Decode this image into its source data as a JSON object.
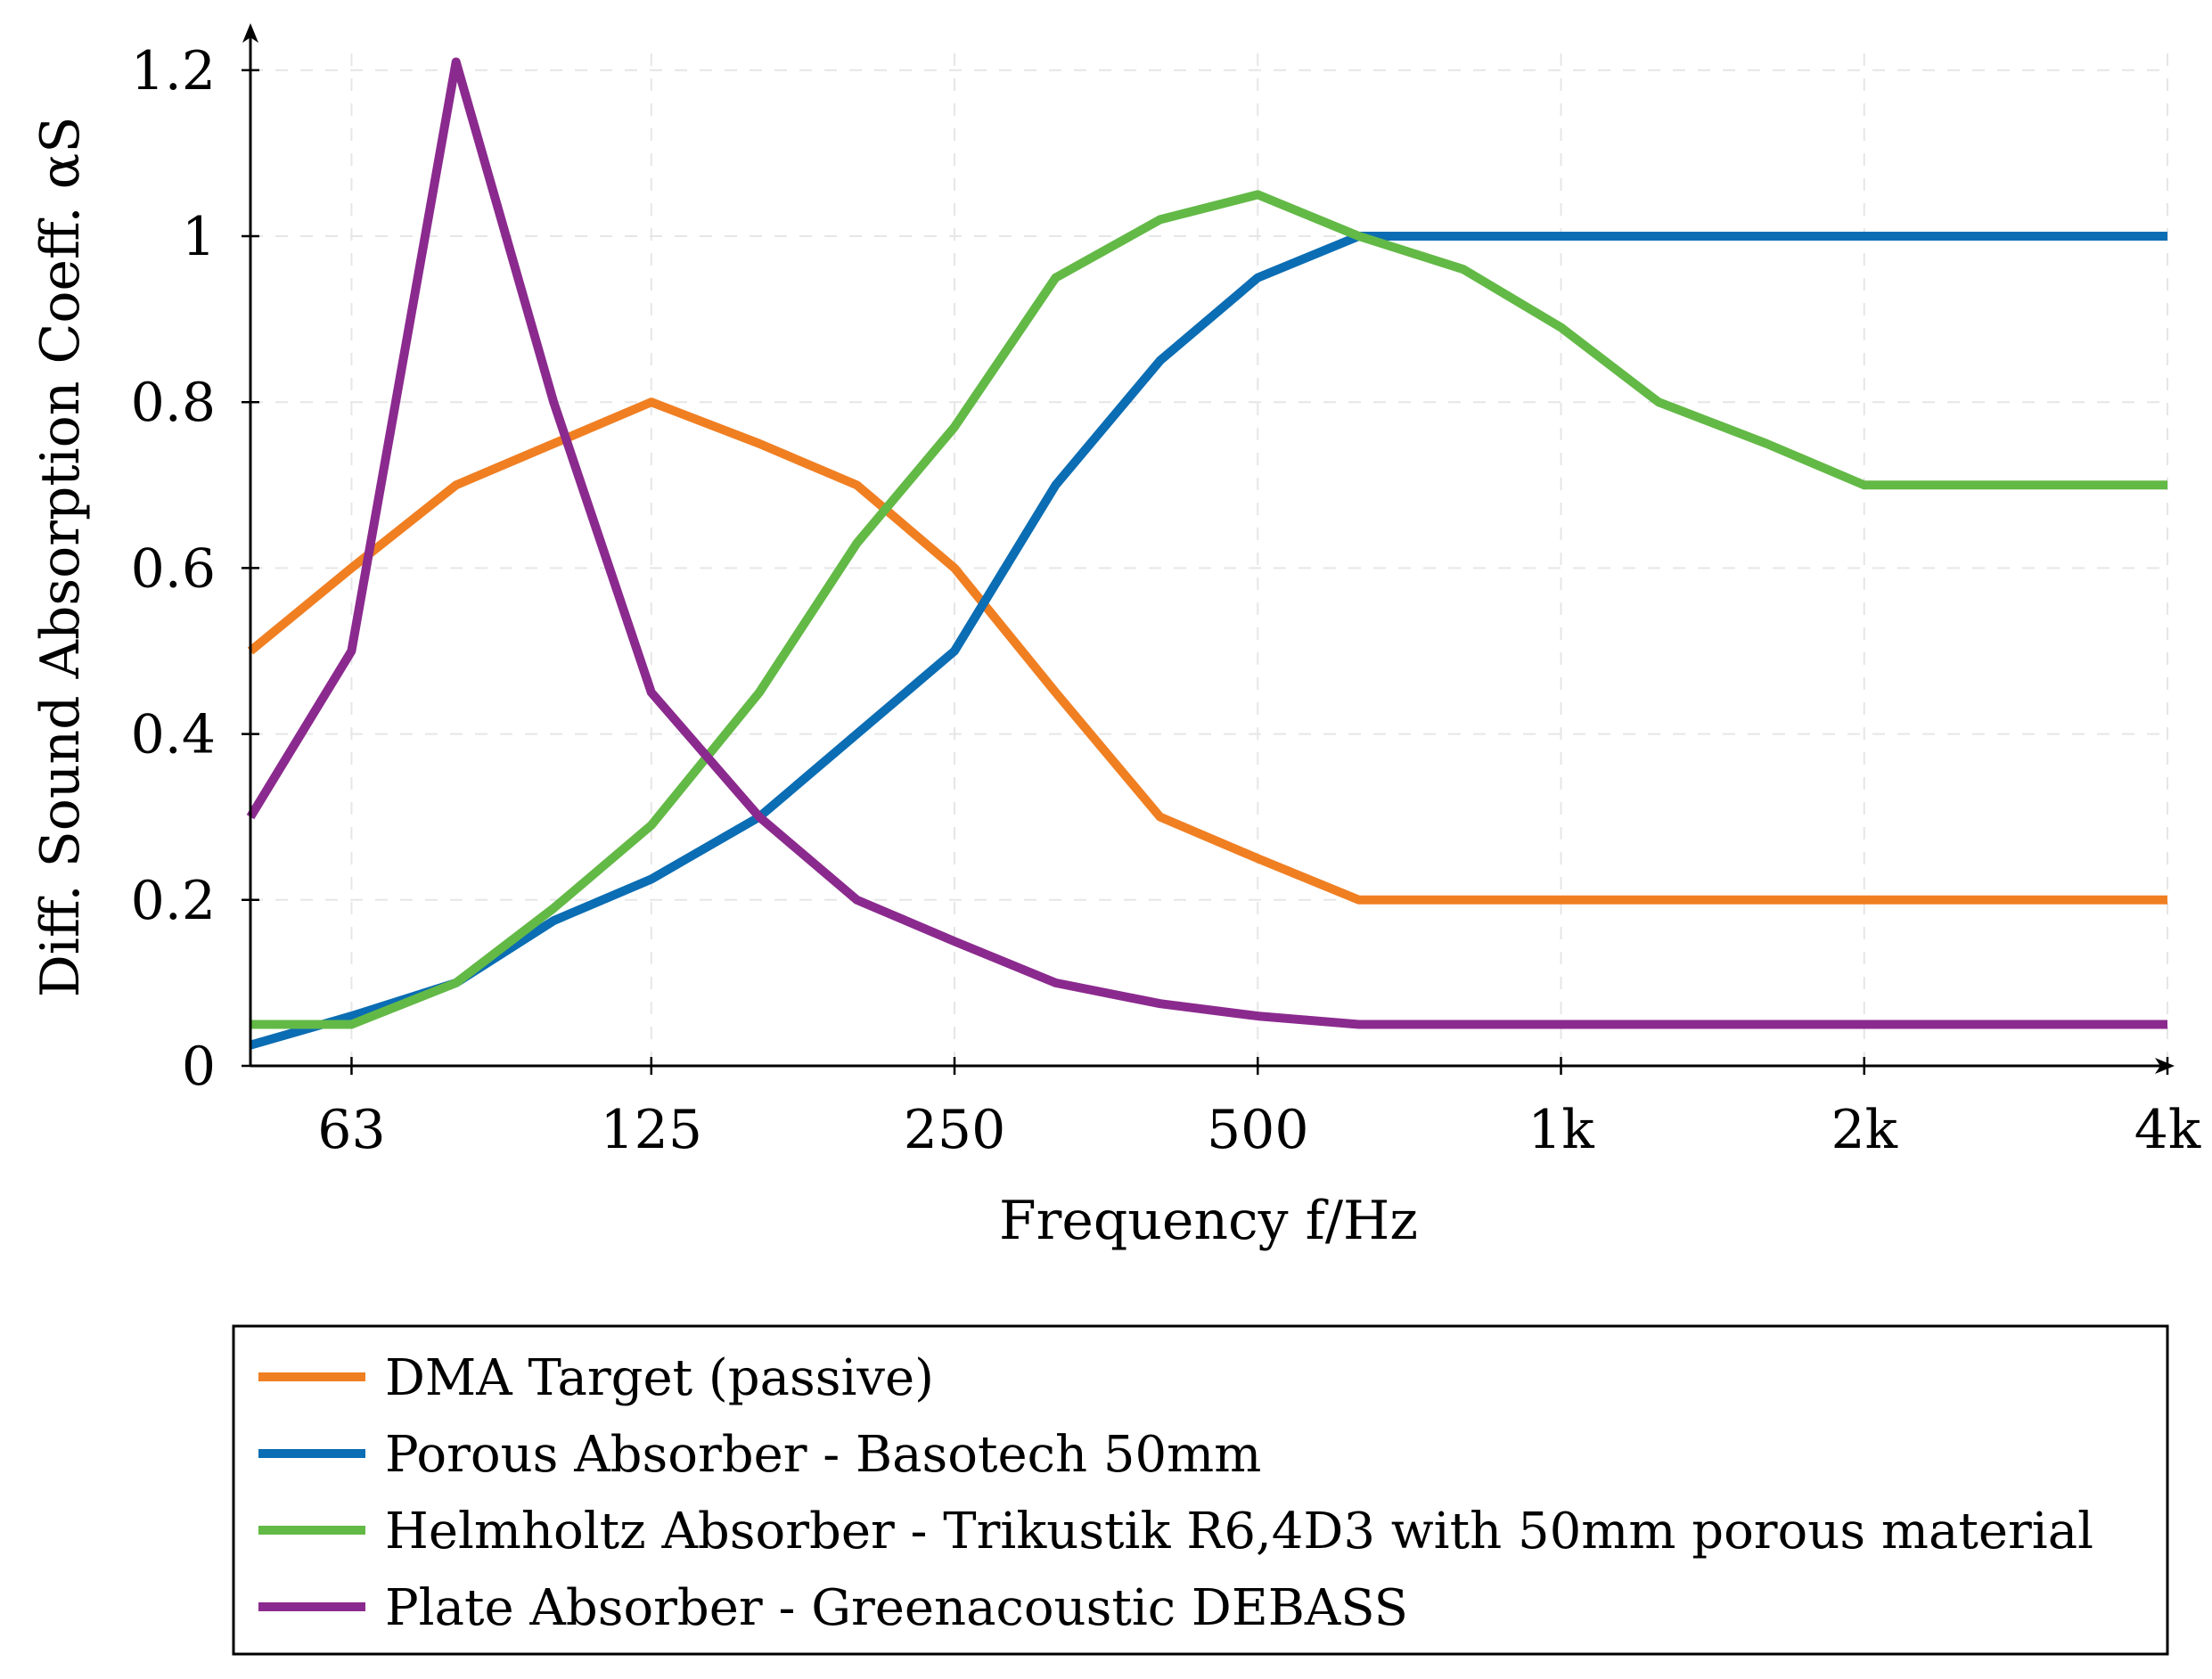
{
  "chart_data": {
    "type": "line",
    "title": "",
    "xlabel": "Frequency f/Hz",
    "ylabel": "Diff. Sound Absorption Coeff. αS",
    "x_scale": "log2",
    "xlim": [
      50,
      4000
    ],
    "ylim": [
      0,
      1.25
    ],
    "grid": true,
    "legend_position": "bottom",
    "x_ticks": [
      63,
      125,
      250,
      500,
      1000,
      2000,
      4000
    ],
    "x_tick_labels": [
      "63",
      "125",
      "250",
      "500",
      "1k",
      "2k",
      "4k"
    ],
    "y_ticks": [
      0,
      0.2,
      0.4,
      0.6,
      0.8,
      1,
      1.2
    ],
    "y_tick_labels": [
      "0",
      "0.2",
      "0.4",
      "0.6",
      "0.8",
      "1",
      "1.2"
    ],
    "x": [
      50,
      63,
      80,
      100,
      125,
      160,
      200,
      250,
      315,
      400,
      500,
      630,
      800,
      1000,
      1250,
      1600,
      2000,
      2500,
      3150,
      4000
    ],
    "series": [
      {
        "name": "DMA Target (passive)",
        "color": "#f07f22",
        "values": [
          0.5,
          0.6,
          0.7,
          0.75,
          0.8,
          0.75,
          0.7,
          0.6,
          0.45,
          0.3,
          0.25,
          0.2,
          0.2,
          0.2,
          0.2,
          0.2,
          0.2,
          0.2,
          0.2,
          0.2
        ]
      },
      {
        "name": "Porous Absorber - Basotech 50mm",
        "color": "#0b6db3",
        "values": [
          0.025,
          0.06,
          0.1,
          0.175,
          0.225,
          0.3,
          0.4,
          0.5,
          0.7,
          0.85,
          0.95,
          1.0,
          1.0,
          1.0,
          1.0,
          1.0,
          1.0,
          1.0,
          1.0,
          1.0
        ]
      },
      {
        "name": "Helmholtz Absorber - Trikustik R6,4D3 with 50mm porous material",
        "color": "#63b946",
        "values": [
          0.05,
          0.05,
          0.1,
          0.19,
          0.29,
          0.45,
          0.63,
          0.77,
          0.95,
          1.02,
          1.05,
          1.0,
          0.96,
          0.89,
          0.8,
          0.75,
          0.7,
          0.7,
          0.7,
          0.7
        ]
      },
      {
        "name": "Plate Absorber - Greenacoustic DEBASS",
        "color": "#8b2a8e",
        "values": [
          0.3,
          0.5,
          1.21,
          0.8,
          0.45,
          0.3,
          0.2,
          0.15,
          0.1,
          0.075,
          0.06,
          0.05,
          0.05,
          0.05,
          0.05,
          0.05,
          0.05,
          0.05,
          0.05,
          0.05
        ]
      }
    ]
  }
}
